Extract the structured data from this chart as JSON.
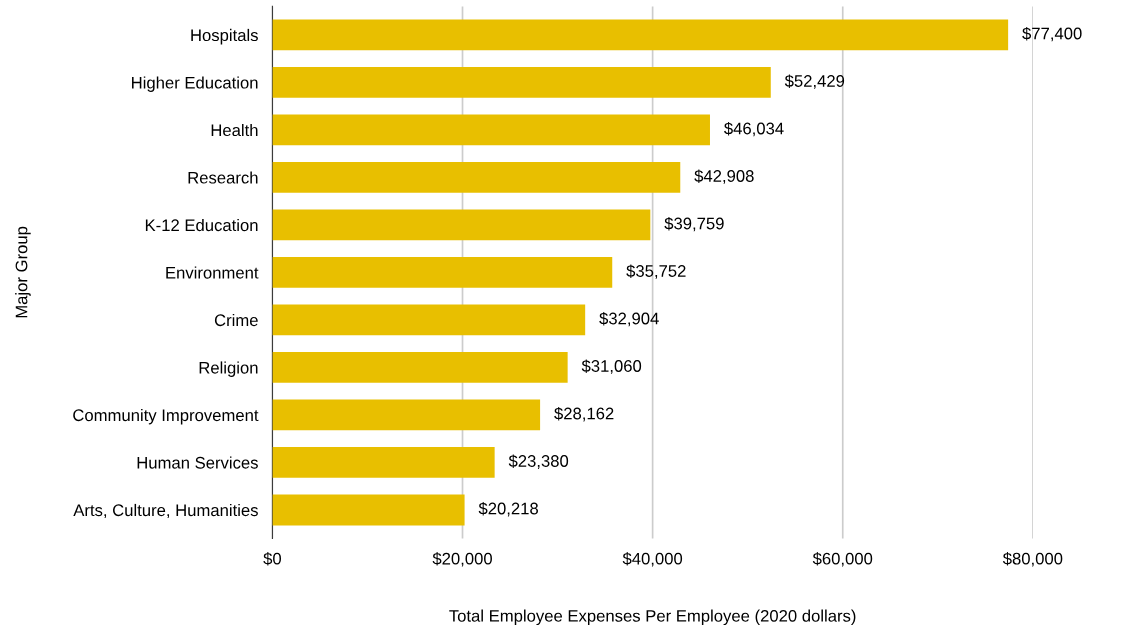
{
  "chart_data": {
    "type": "bar",
    "orientation": "horizontal",
    "xlabel": "Total Employee Expenses Per Employee (2020 dollars)",
    "ylabel": "Major Group",
    "categories": [
      "Hospitals",
      "Higher Education",
      "Health",
      "Research",
      "K-12 Education",
      "Environment",
      "Crime",
      "Religion",
      "Community Improvement",
      "Human Services",
      "Arts, Culture, Humanities"
    ],
    "values": [
      77400,
      52429,
      46034,
      42908,
      39759,
      35752,
      32904,
      31060,
      28162,
      23380,
      20218
    ],
    "value_labels": [
      "$77,400",
      "$52,429",
      "$46,034",
      "$42,908",
      "$39,759",
      "$35,752",
      "$32,904",
      "$31,060",
      "$28,162",
      "$23,380",
      "$20,218"
    ],
    "color": "#e8bf00",
    "xlim": [
      0,
      80000
    ],
    "xticks": [
      {
        "value": 0,
        "label": "$0"
      },
      {
        "value": 20000,
        "label": "$20,000"
      },
      {
        "value": 40000,
        "label": "$40,000"
      },
      {
        "value": 60000,
        "label": "$60,000"
      },
      {
        "value": 80000,
        "label": "$80,000"
      }
    ],
    "grid": "x",
    "legend": false
  }
}
